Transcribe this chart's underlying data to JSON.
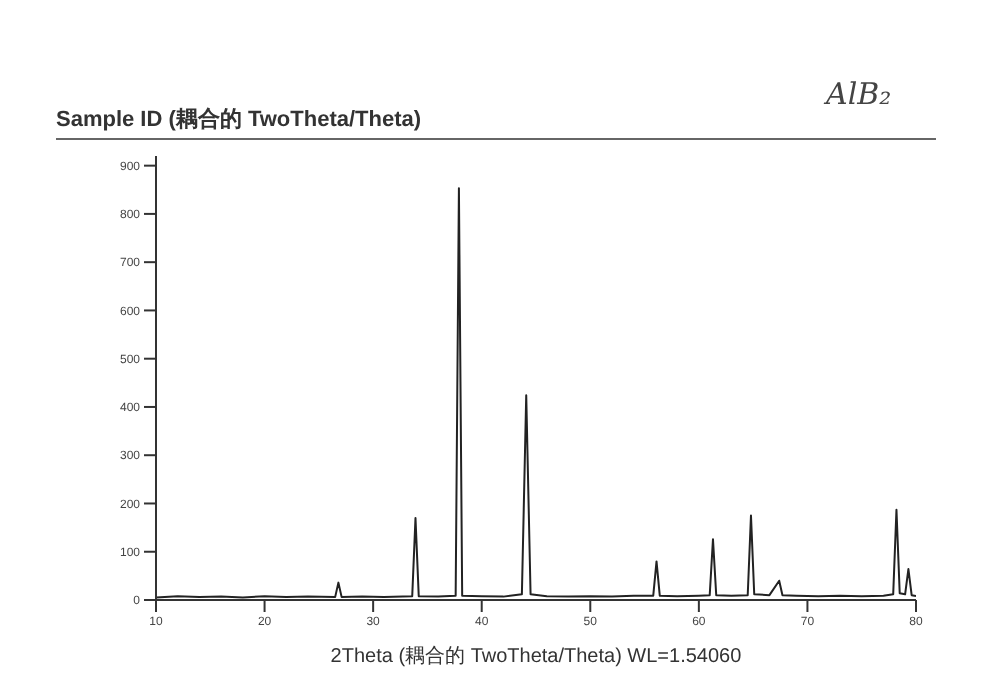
{
  "chart_data": {
    "type": "line",
    "title": "Sample ID (耦合的 TwoTheta/Theta)",
    "xlabel": "2Theta (耦合的 TwoTheta/Theta) WL=1.54060",
    "annotations": [
      "AlB₂"
    ],
    "x": [
      10,
      12,
      14,
      16,
      18,
      20,
      22,
      24,
      26.5,
      26.8,
      27.1,
      29,
      31,
      33.6,
      33.9,
      34.2,
      36,
      37.6,
      37.9,
      38.2,
      40,
      42,
      43.7,
      44.1,
      44.5,
      46,
      48,
      50,
      52,
      54,
      55.8,
      56.1,
      56.4,
      58,
      60,
      61.0,
      61.3,
      61.6,
      63,
      64.5,
      64.8,
      65.1,
      66.5,
      67.4,
      67.7,
      69,
      71,
      73,
      75,
      77,
      77.9,
      78.2,
      78.5,
      79.0,
      79.3,
      79.6,
      80
    ],
    "series": [
      {
        "color": "#222222",
        "values": [
          5,
          8,
          6,
          7,
          5,
          8,
          6,
          7,
          6,
          36,
          6,
          7,
          6,
          8,
          170,
          8,
          7,
          9,
          853,
          9,
          8,
          7,
          12,
          424,
          12,
          8,
          7,
          8,
          7,
          9,
          9,
          80,
          9,
          8,
          9,
          10,
          126,
          10,
          9,
          10,
          175,
          12,
          10,
          40,
          10,
          9,
          8,
          9,
          8,
          9,
          12,
          187,
          14,
          12,
          64,
          10,
          8
        ]
      }
    ],
    "xlim": [
      10,
      80
    ],
    "xticks": [
      10,
      20,
      30,
      40,
      50,
      60,
      70,
      80
    ],
    "ylim": [
      0,
      920
    ],
    "yticks": [
      0,
      100,
      200,
      300,
      400,
      500,
      600,
      700,
      800,
      900
    ],
    "grid": false,
    "legend": false,
    "marker": "none",
    "line_style": "solid"
  }
}
